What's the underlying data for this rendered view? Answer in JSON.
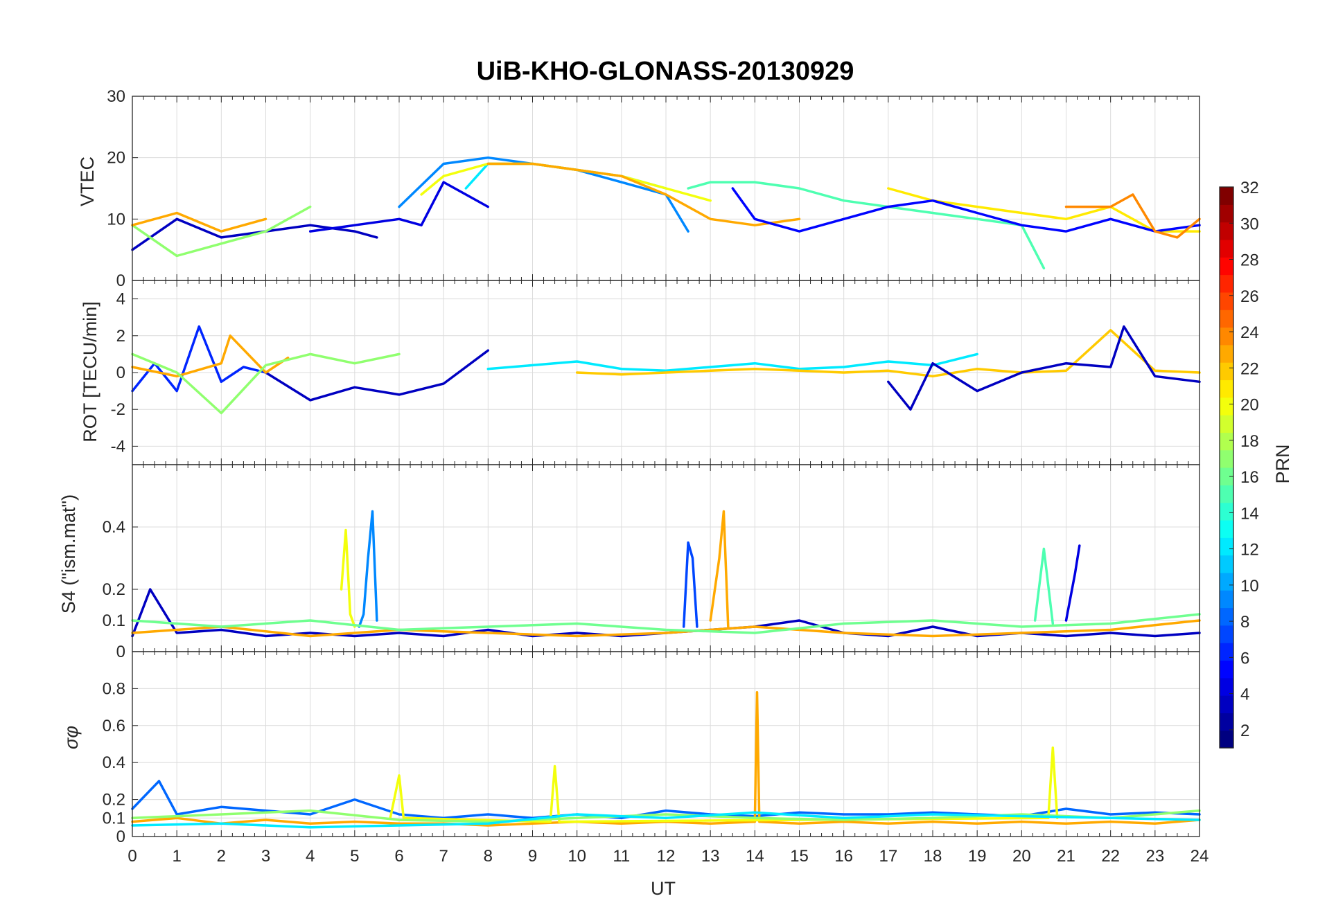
{
  "chart_data": {
    "type": "line",
    "title": "UiB-KHO-GLONASS-20130929",
    "xlabel": "UT",
    "xlim": [
      0,
      24
    ],
    "xticks": [
      "0",
      "1",
      "2",
      "3",
      "4",
      "5",
      "6",
      "7",
      "8",
      "9",
      "10",
      "11",
      "12",
      "13",
      "14",
      "15",
      "16",
      "17",
      "18",
      "19",
      "20",
      "21",
      "22",
      "23",
      "24"
    ],
    "grid": true,
    "colorbar": {
      "label": "PRN",
      "colormap": "jet",
      "range": [
        1,
        32
      ],
      "ticks": [
        "2",
        "4",
        "6",
        "8",
        "10",
        "12",
        "14",
        "16",
        "18",
        "20",
        "22",
        "24",
        "26",
        "28",
        "30",
        "32"
      ],
      "placement": "right"
    },
    "panels": [
      {
        "ylabel": "VTEC",
        "ylim": [
          0,
          30
        ],
        "yticks": [
          "0",
          "10",
          "20",
          "30"
        ],
        "series": [
          {
            "prn": 3,
            "x": [
              0,
              1,
              2,
              3,
              4,
              5,
              5.5
            ],
            "y": [
              5,
              10,
              7,
              8,
              9,
              8,
              7
            ]
          },
          {
            "prn": 4,
            "x": [
              4,
              5,
              6,
              6.5,
              7,
              7.5,
              8
            ],
            "y": [
              8,
              9,
              10,
              9,
              16,
              14,
              12
            ]
          },
          {
            "prn": 9,
            "x": [
              6,
              7,
              8,
              9,
              10,
              11,
              12,
              12.5
            ],
            "y": [
              12,
              19,
              20,
              19,
              18,
              16,
              14,
              8
            ]
          },
          {
            "prn": 12,
            "x": [
              7.5,
              8,
              9,
              10,
              11,
              12
            ],
            "y": [
              15,
              19,
              19,
              18,
              17,
              15
            ]
          },
          {
            "prn": 15,
            "x": [
              12.5,
              13,
              14,
              15,
              16,
              17,
              18,
              19,
              20,
              20.5
            ],
            "y": [
              15,
              16,
              16,
              15,
              13,
              12,
              11,
              10,
              9,
              2
            ]
          },
          {
            "prn": 17,
            "x": [
              0,
              1,
              2,
              3,
              4
            ],
            "y": [
              9,
              4,
              6,
              8,
              12
            ]
          },
          {
            "prn": 20,
            "x": [
              6.5,
              7,
              8,
              9,
              10,
              11,
              12,
              13
            ],
            "y": [
              14,
              17,
              19,
              19,
              18,
              17,
              15,
              13
            ]
          },
          {
            "prn": 23,
            "x": [
              0,
              1,
              2,
              3
            ],
            "y": [
              9,
              11,
              8,
              10
            ]
          },
          {
            "prn": 23,
            "x": [
              8,
              9,
              10,
              11,
              12,
              13,
              14,
              15
            ],
            "y": [
              19,
              19,
              18,
              17,
              14,
              10,
              9,
              10
            ]
          },
          {
            "prn": 21,
            "x": [
              17,
              18,
              19,
              20,
              21,
              22,
              23,
              24
            ],
            "y": [
              15,
              13,
              12,
              11,
              10,
              12,
              8,
              8
            ]
          },
          {
            "prn": 5,
            "x": [
              13.5,
              14,
              15,
              16,
              17,
              18,
              19,
              20,
              21,
              22,
              23,
              24
            ],
            "y": [
              15,
              10,
              8,
              10,
              12,
              13,
              11,
              9,
              8,
              10,
              8,
              9
            ]
          },
          {
            "prn": 24,
            "x": [
              21,
              22,
              22.5,
              23,
              23.5,
              24
            ],
            "y": [
              12,
              12,
              14,
              8,
              7,
              10
            ]
          }
        ]
      },
      {
        "ylabel": "ROT [TECU/min]",
        "ylim": [
          -5,
          5
        ],
        "yticks": [
          "-4",
          "-2",
          "0",
          "2",
          "4"
        ],
        "series": [
          {
            "prn": 6,
            "x": [
              0,
              0.5,
              1,
              1.5,
              2,
              2.5,
              3
            ],
            "y": [
              -1,
              0.5,
              -1,
              2.5,
              -0.5,
              0.3,
              0
            ]
          },
          {
            "prn": 3,
            "x": [
              3,
              4,
              5,
              6,
              7,
              8
            ],
            "y": [
              0,
              -1.5,
              -0.8,
              -1.2,
              -0.6,
              1.2
            ]
          },
          {
            "prn": 23,
            "x": [
              0,
              1,
              2,
              2.2,
              3,
              3.5
            ],
            "y": [
              0.3,
              -0.2,
              0.5,
              2,
              0,
              0.8
            ]
          },
          {
            "prn": 17,
            "x": [
              0,
              1,
              2,
              3,
              4,
              5,
              6
            ],
            "y": [
              1,
              0,
              -2.2,
              0.4,
              1,
              0.5,
              1
            ]
          },
          {
            "prn": 12,
            "x": [
              8,
              9,
              10,
              11,
              12,
              13,
              14,
              15,
              16,
              17,
              18,
              19
            ],
            "y": [
              0.2,
              0.4,
              0.6,
              0.2,
              0.1,
              0.3,
              0.5,
              0.2,
              0.3,
              0.6,
              0.4,
              1
            ]
          },
          {
            "prn": 22,
            "x": [
              10,
              11,
              12,
              13,
              14,
              15,
              16,
              17,
              18,
              19,
              20,
              21,
              22,
              23,
              24
            ],
            "y": [
              0,
              -0.1,
              0,
              0.1,
              0.2,
              0.1,
              0,
              0.1,
              -0.2,
              0.2,
              0,
              0.1,
              2.3,
              0.1,
              0
            ]
          },
          {
            "prn": 3,
            "x": [
              17,
              17.5,
              18,
              19,
              20,
              21,
              22,
              22.3,
              23,
              24
            ],
            "y": [
              -0.5,
              -2,
              0.5,
              -1,
              0,
              0.5,
              0.3,
              2.5,
              -0.2,
              -0.5
            ]
          }
        ]
      },
      {
        "ylabel": "S4 (\"ism.mat\")",
        "ylim": [
          0,
          0.6
        ],
        "yticks": [
          "0",
          "0.1",
          "0.2",
          "0.4"
        ],
        "series": [
          {
            "prn": 3,
            "x": [
              0,
              0.4,
              1,
              2,
              3,
              4,
              5,
              6,
              7,
              8,
              9,
              10,
              11,
              12,
              13,
              14,
              15,
              16,
              17,
              18,
              19,
              20,
              21,
              22,
              23,
              24
            ],
            "y": [
              0.05,
              0.2,
              0.06,
              0.07,
              0.05,
              0.06,
              0.05,
              0.06,
              0.05,
              0.07,
              0.05,
              0.06,
              0.05,
              0.06,
              0.07,
              0.08,
              0.1,
              0.06,
              0.05,
              0.08,
              0.05,
              0.06,
              0.05,
              0.06,
              0.05,
              0.06
            ]
          },
          {
            "prn": 9,
            "x": [
              5.1,
              5.2,
              5.3,
              5.4,
              5.5
            ],
            "y": [
              0.08,
              0.12,
              0.3,
              0.45,
              0.1
            ]
          },
          {
            "prn": 20,
            "x": [
              4.7,
              4.8,
              4.9,
              5.0
            ],
            "y": [
              0.2,
              0.39,
              0.12,
              0.08
            ]
          },
          {
            "prn": 7,
            "x": [
              12.4,
              12.5,
              12.6,
              12.7
            ],
            "y": [
              0.08,
              0.35,
              0.3,
              0.08
            ]
          },
          {
            "prn": 23,
            "x": [
              13.0,
              13.2,
              13.3,
              13.4
            ],
            "y": [
              0.1,
              0.3,
              0.45,
              0.08
            ]
          },
          {
            "prn": 4,
            "x": [
              21,
              21.2,
              21.3
            ],
            "y": [
              0.1,
              0.25,
              0.34
            ]
          },
          {
            "prn": 15,
            "x": [
              20.3,
              20.5,
              20.7
            ],
            "y": [
              0.1,
              0.33,
              0.09
            ]
          },
          {
            "prn": 23,
            "x": [
              0,
              2,
              4,
              6,
              8,
              10,
              12,
              14,
              16,
              18,
              20,
              22,
              24
            ],
            "y": [
              0.06,
              0.08,
              0.05,
              0.07,
              0.06,
              0.05,
              0.06,
              0.08,
              0.06,
              0.05,
              0.06,
              0.07,
              0.1
            ]
          },
          {
            "prn": 16,
            "x": [
              0,
              2,
              4,
              6,
              8,
              10,
              12,
              14,
              16,
              18,
              20,
              22,
              24
            ],
            "y": [
              0.1,
              0.08,
              0.1,
              0.07,
              0.08,
              0.09,
              0.07,
              0.06,
              0.09,
              0.1,
              0.08,
              0.09,
              0.12
            ]
          }
        ]
      },
      {
        "ylabel": "σφ",
        "ylim": [
          0,
          1
        ],
        "yticks": [
          "0",
          "0.1",
          "0.2",
          "0.4",
          "0.6",
          "0.8"
        ],
        "series": [
          {
            "prn": 8,
            "x": [
              0,
              0.6,
              1,
              2,
              3,
              4,
              5,
              6,
              7,
              8,
              9,
              10,
              11,
              12,
              13,
              14,
              15,
              16,
              17,
              18,
              19,
              20,
              21,
              22,
              23,
              24
            ],
            "y": [
              0.15,
              0.3,
              0.12,
              0.16,
              0.14,
              0.12,
              0.2,
              0.12,
              0.1,
              0.12,
              0.1,
              0.12,
              0.1,
              0.14,
              0.12,
              0.11,
              0.13,
              0.12,
              0.12,
              0.13,
              0.12,
              0.11,
              0.15,
              0.12,
              0.13,
              0.12
            ]
          },
          {
            "prn": 23,
            "x": [
              0,
              1,
              2,
              3,
              4,
              5,
              6,
              7,
              8,
              9,
              10,
              11,
              12,
              13,
              14,
              14.05,
              14.1,
              15,
              16,
              17,
              18,
              19,
              20,
              21,
              22,
              23,
              24
            ],
            "y": [
              0.08,
              0.1,
              0.07,
              0.09,
              0.07,
              0.08,
              0.07,
              0.07,
              0.06,
              0.07,
              0.08,
              0.07,
              0.08,
              0.07,
              0.08,
              0.78,
              0.08,
              0.07,
              0.08,
              0.07,
              0.08,
              0.07,
              0.08,
              0.07,
              0.08,
              0.07,
              0.09
            ]
          },
          {
            "prn": 20,
            "x": [
              5.8,
              6.0,
              6.1,
              9.4,
              9.5,
              9.6,
              20.6,
              20.7,
              20.8
            ],
            "y": [
              0.1,
              0.33,
              0.1,
              0.08,
              0.38,
              0.08,
              0.1,
              0.48,
              0.1
            ]
          },
          {
            "prn": 17,
            "x": [
              0,
              2,
              4,
              6,
              8,
              10,
              12,
              14,
              16,
              18,
              20,
              22,
              24
            ],
            "y": [
              0.1,
              0.12,
              0.14,
              0.09,
              0.08,
              0.1,
              0.12,
              0.1,
              0.09,
              0.1,
              0.12,
              0.1,
              0.14
            ]
          },
          {
            "prn": 12,
            "x": [
              0,
              2,
              4,
              6,
              8,
              10,
              12,
              14,
              16,
              18,
              20,
              22,
              24
            ],
            "y": [
              0.06,
              0.07,
              0.05,
              0.06,
              0.07,
              0.12,
              0.1,
              0.13,
              0.1,
              0.12,
              0.11,
              0.1,
              0.09
            ]
          }
        ]
      }
    ]
  }
}
